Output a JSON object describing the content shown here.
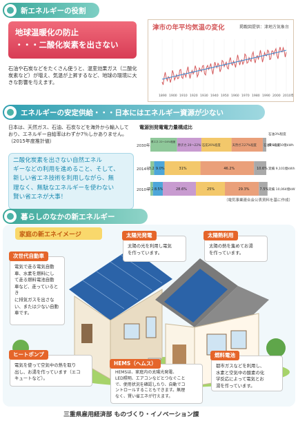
{
  "section1": {
    "header": "新エネルギーの役割",
    "red_box_line1": "地球温暖化の防止",
    "red_box_line2": "・・・二酸化炭素を出さない",
    "body": [
      "石油や石炭などをたくさん使うと、温室効果ガス（二酸化",
      "炭素など）が増え、気温が上昇するなど、地球の環境に大",
      "きな影響を与えます。"
    ]
  },
  "temp_chart": {
    "title": "津市の年平均気温の変化",
    "source": "掲載図提供：津地方気象台"
  },
  "section2": {
    "header": "エネルギーの安定供給・・・日本にはエネルギー資源が少ない",
    "body": [
      "日本は、天然ガス、石油、石炭などを海外から輸入して",
      "おり、エネルギー自給率はわずか7％しかありません。",
      "（2015年度推計値）"
    ],
    "blue_box": [
      "二酸化炭素を出さない自然エネル",
      "ギーなどの利用を進めること、そして、",
      "新しい省エネ技術を利用しながら、無",
      "理なく、無駄なエネルギーを使わない",
      "賢い省エネが大事！"
    ]
  },
  "chart_data": {
    "type": "bar",
    "title": "電源別発電電力量構成比",
    "source": "（電気事業連合会公表資料を基に作成）",
    "categories": [
      "2030年度",
      "2014年度",
      "2010年度"
    ],
    "series": [
      {
        "name": "地熱・バイオマス・風力・太陽光等",
        "color": "#8fc89a",
        "values": [
          null,
          3.2,
          2.2
        ]
      },
      {
        "name": "水力",
        "color": "#4da6d9",
        "values": [
          null,
          9.0,
          8.5
        ]
      },
      {
        "name": "原子力",
        "color": "#c89bd0",
        "values": [
          null,
          0.0,
          28.6
        ]
      },
      {
        "name": "石炭",
        "color": "#f3c86b",
        "values": [
          null,
          31.0,
          25.0
        ]
      },
      {
        "name": "天然ガス",
        "color": "#eaa07a",
        "values": [
          null,
          46.2,
          29.3
        ]
      },
      {
        "name": "石油",
        "color": "#a9a9a9",
        "values": [
          null,
          10.6,
          7.5
        ]
      }
    ],
    "row_2030_labels": [
      "再エネ 22〜24%程度",
      "原子力 20〜22%程度",
      "石炭26%程度",
      "天然ガス27%程度",
      "石油3%程度"
    ],
    "row_2030_renew_top": "地熱・バイオマス・風力・太陽光等",
    "row_2030_renew_bottom": "水力 8.8〜9.2%程度",
    "row_2030_renew_bottom_a": "水力",
    "row_2030_renew_bottom_b": "8.8〜9.2%程度",
    "annot_2030": "石油3%程度",
    "annot_2030_total": "風 10,650億kWh",
    "annot_2014": "実績 9,101億kWh",
    "annot_2010": "実績 10,064億kWh",
    "labels_2014": [
      "3.2%",
      "9.0%",
      "",
      "31%",
      "46.2%",
      "10.6%"
    ],
    "labels_2010": [
      "2.2%",
      "8.5%",
      "28.6%",
      "25%",
      "29.3%",
      "7.5%"
    ],
    "row_2030_seg1": "地熱・バイオマス・風力・太陽光等",
    "row_2030_seg_h": "水力"
  },
  "section3": {
    "header": "暮らしのなかの新エネルギー",
    "home_title": "家庭の新エネイメージ"
  },
  "cards": {
    "ev": {
      "label": "次世代自動車",
      "text": [
        "電気で走る電気自動",
        "車、水素を燃料にし",
        "て走る燃料電池自動",
        "車など、走っているとき",
        "に排気ガスを出さな",
        "い、または少ない自動",
        "車です。"
      ]
    },
    "solar_pv": {
      "label": "太陽光発電",
      "text": [
        "太陽の光を利用し電気",
        "を作っています。"
      ]
    },
    "solar_heat": {
      "label": "太陽熱利用",
      "text": [
        "太陽の熱を集めてお湯",
        "を作っています。"
      ]
    },
    "heatpump": {
      "label": "ヒートポンプ",
      "text": [
        "電気を使って空気中の熱を取り",
        "出し、お湯を作っています（エコ",
        "キュートなど）。"
      ]
    },
    "hems": {
      "label": "HEMS（ヘムス）",
      "text": [
        "HEMSは、家庭内の太陽光発電、",
        "LED照明、エアコンなどとつなぐこと",
        "で、使用状況を確認したり、自動でコ",
        "ントロールすることもできます。無理",
        "なく、賢い省エネが行えます。"
      ]
    },
    "fuelcell": {
      "label": "燃料電池",
      "text": [
        "都市ガスなどを利用し、",
        "水素と空気中の酸素の化",
        "学反応によって電気とお",
        "湯を作っています。"
      ]
    }
  },
  "footer": "三重県雇用経済部 ものづくり・イノベーション課"
}
